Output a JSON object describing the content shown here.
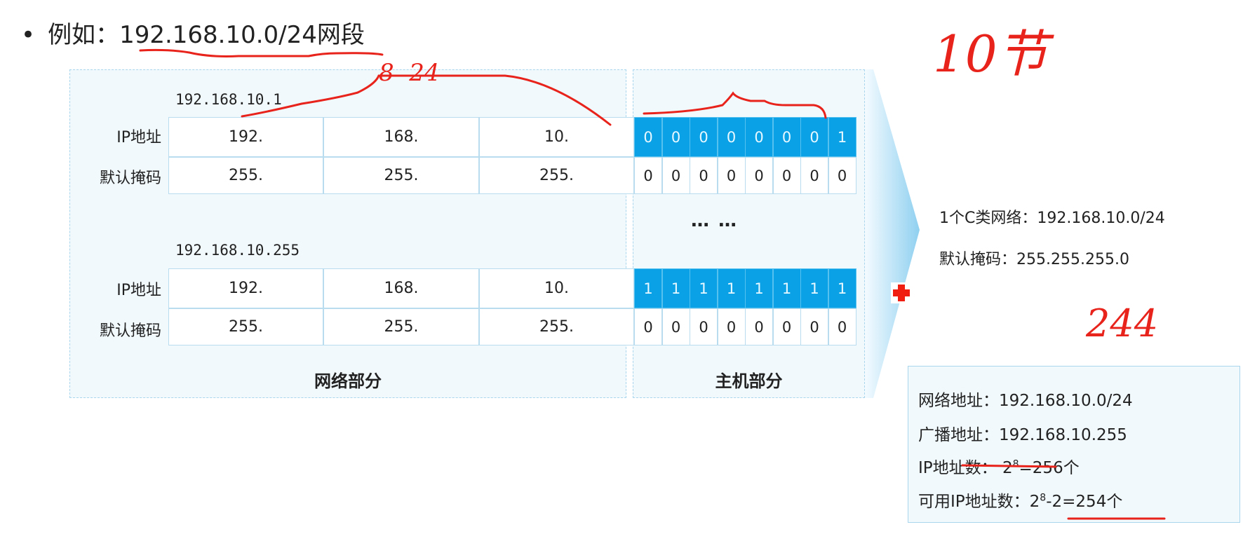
{
  "slide": {
    "title_prefix": "例如：",
    "title_network": "192.168.10.0/24网段",
    "bullet": "•"
  },
  "table_top": {
    "address_label": "192.168.10.1",
    "ip_label": "IP地址",
    "mask_label": "默认掩码",
    "ip_octets": [
      "192.",
      "168.",
      "10."
    ],
    "mask_octets": [
      "255.",
      "255.",
      "255."
    ],
    "ip_bits": [
      "0",
      "0",
      "0",
      "0",
      "0",
      "0",
      "0",
      "1"
    ],
    "mask_bits": [
      "0",
      "0",
      "0",
      "0",
      "0",
      "0",
      "0",
      "0"
    ]
  },
  "ellipsis": "… …",
  "table_bottom": {
    "address_label": "192.168.10.255",
    "ip_label": "IP地址",
    "mask_label": "默认掩码",
    "ip_octets": [
      "192.",
      "168.",
      "10."
    ],
    "mask_octets": [
      "255.",
      "255.",
      "255."
    ],
    "ip_bits": [
      "1",
      "1",
      "1",
      "1",
      "1",
      "1",
      "1",
      "1"
    ],
    "mask_bits": [
      "0",
      "0",
      "0",
      "0",
      "0",
      "0",
      "0",
      "0"
    ]
  },
  "sections": {
    "network": "网络部分",
    "host": "主机部分"
  },
  "info": {
    "class_c": "1个C类网络：192.168.10.0/24",
    "default_mask": "默认掩码：255.255.255.0"
  },
  "summary": {
    "network_address": "网络地址：192.168.10.0/24",
    "broadcast_address": "广播地址：192.168.10.255",
    "ip_count_label": "IP地址数：",
    "ip_count_base": "2",
    "ip_count_exp": "8",
    "ip_count_rest": "=256个",
    "usable_label": "可用IP地址数：",
    "usable_base": "2",
    "usable_exp": "8",
    "usable_rest": "-2=254个"
  },
  "handwriting": {
    "top_right": "10节",
    "middle_right": "244",
    "over_table": "8  24"
  },
  "colors": {
    "bit_highlight": "#0aa1e6",
    "annotation": "#e8231b",
    "panel": "#f1f9fd"
  }
}
